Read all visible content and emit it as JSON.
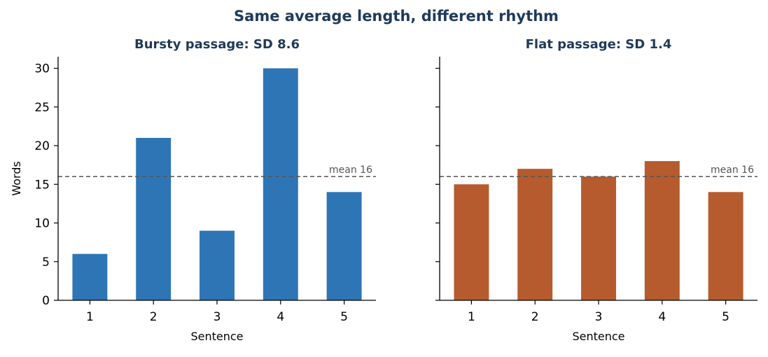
{
  "figure": {
    "suptitle": "Same average length, different rhythm",
    "title_color": "#1f3a5a"
  },
  "chart_data": [
    {
      "type": "bar",
      "title": "Bursty passage: SD 8.6",
      "xlabel": "Sentence",
      "ylabel": "Words",
      "categories": [
        "1",
        "2",
        "3",
        "4",
        "5"
      ],
      "values": [
        6,
        21,
        9,
        30,
        14
      ],
      "ylim": [
        0,
        31.5
      ],
      "yticks": [
        0,
        5,
        10,
        15,
        20,
        25,
        30
      ],
      "ytick_labels_visible": true,
      "bar_color": "#2e75b6",
      "reference_line": {
        "value": 16,
        "label": "mean 16",
        "style": "dashed",
        "color": "#555555"
      },
      "grid": false,
      "legend": "none"
    },
    {
      "type": "bar",
      "title": "Flat passage: SD 1.4",
      "xlabel": "Sentence",
      "ylabel": "",
      "categories": [
        "1",
        "2",
        "3",
        "4",
        "5"
      ],
      "values": [
        15,
        17,
        16,
        18,
        14
      ],
      "ylim": [
        0,
        31.5
      ],
      "yticks": [
        0,
        5,
        10,
        15,
        20,
        25,
        30
      ],
      "ytick_labels_visible": false,
      "bar_color": "#b55b2e",
      "reference_line": {
        "value": 16,
        "label": "mean 16",
        "style": "dashed",
        "color": "#555555"
      },
      "grid": false,
      "legend": "none"
    }
  ]
}
